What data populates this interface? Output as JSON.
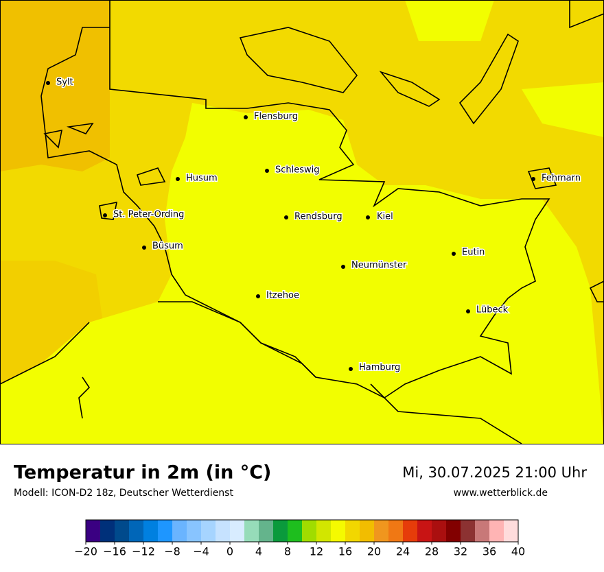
{
  "header": {
    "title": "Temperatur in 2m (in °C)",
    "subtitle": "Modell: ICON-D2 18z, Deutscher Wetterdienst",
    "datetime": "Mi, 30.07.2025 21:00 Uhr",
    "website": "www.wetterblick.de"
  },
  "cities": [
    "Sylt",
    "Flensburg",
    "Schleswig",
    "Husum",
    "Fehmarn",
    "St. Peter-Ording",
    "Rendsburg",
    "Kiel",
    "Büsum",
    "Eutin",
    "Neumünster",
    "Itzehoe",
    "Lübeck",
    "Hamburg"
  ],
  "colorbar": {
    "lim": [
      -20,
      40
    ],
    "colors": [
      "#3a0082",
      "#00307a",
      "#004a8c",
      "#0066b8",
      "#0080e0",
      "#1e96ff",
      "#6ab4ff",
      "#88c4ff",
      "#a6d4ff",
      "#c6e2ff",
      "#d8ecff",
      "#96dcb9",
      "#64b48c",
      "#0a9a3c",
      "#1ebe1e",
      "#a0dc00",
      "#d2e600",
      "#f5fa00",
      "#f2d700",
      "#f2bd00",
      "#f0961e",
      "#f07814",
      "#e63c0a",
      "#c81414",
      "#aa0f0f",
      "#820000",
      "#8c3232",
      "#c87878",
      "#ffb4b4",
      "#ffdcdc"
    ],
    "ticks": [
      {
        "value": -20,
        "label": "−20"
      },
      {
        "value": -16,
        "label": "−16"
      },
      {
        "value": -12,
        "label": "−12"
      },
      {
        "value": -8,
        "label": "−8"
      },
      {
        "value": -4,
        "label": "−4"
      },
      0,
      4,
      8,
      12,
      16,
      20,
      24,
      28,
      32,
      36,
      40
    ]
  }
}
